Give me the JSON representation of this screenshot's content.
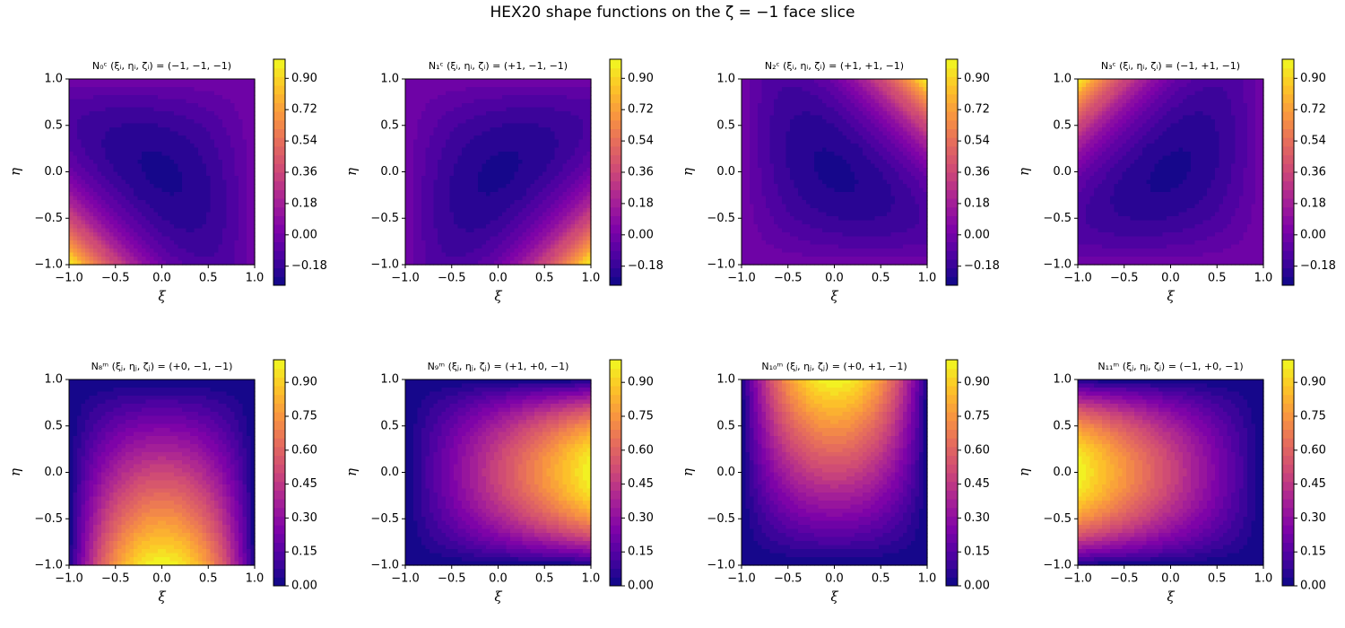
{
  "title": "HEX20 shape functions on the ζ = −1 face slice",
  "zeta": -1,
  "chart_data": [
    {
      "type": "contour",
      "title": "N₀ᶜ  (ξᵢ, ηᵢ, ζᵢ) = (−1, −1, −1)",
      "node": [
        -1,
        -1,
        -1
      ],
      "xlabel": "ξ",
      "ylabel": "η",
      "xlim": [
        -1,
        1
      ],
      "ylim": [
        -1,
        1
      ],
      "xticks": [
        {
          "value": -1,
          "label": "−1.0"
        },
        {
          "value": -0.5,
          "label": "−0.5"
        },
        {
          "value": 0,
          "label": "0.0"
        },
        {
          "value": 0.5,
          "label": "0.5"
        },
        {
          "value": 1,
          "label": "1.0"
        }
      ],
      "yticks": [
        {
          "value": -1,
          "label": "−1.0"
        },
        {
          "value": -0.5,
          "label": "−0.5"
        },
        {
          "value": 0,
          "label": "0.0"
        },
        {
          "value": 0.5,
          "label": "0.5"
        },
        {
          "value": 1,
          "label": "1.0"
        }
      ],
      "colormap": "plasma",
      "clim": [
        -0.29,
        1.01
      ],
      "cticks": [
        {
          "value": -0.18,
          "label": "−0.18"
        },
        {
          "value": 0,
          "label": "0.00"
        },
        {
          "value": 0.18,
          "label": "0.18"
        },
        {
          "value": 0.36,
          "label": "0.36"
        },
        {
          "value": 0.54,
          "label": "0.54"
        },
        {
          "value": 0.72,
          "label": "0.72"
        },
        {
          "value": 0.9,
          "label": "0.90"
        }
      ]
    },
    {
      "type": "contour",
      "title": "N₁ᶜ  (ξᵢ, ηᵢ, ζᵢ) = (+1, −1, −1)",
      "node": [
        1,
        -1,
        -1
      ],
      "xlabel": "ξ",
      "ylabel": "η",
      "xlim": [
        -1,
        1
      ],
      "ylim": [
        -1,
        1
      ],
      "xticks": [
        {
          "value": -1,
          "label": "−1.0"
        },
        {
          "value": -0.5,
          "label": "−0.5"
        },
        {
          "value": 0,
          "label": "0.0"
        },
        {
          "value": 0.5,
          "label": "0.5"
        },
        {
          "value": 1,
          "label": "1.0"
        }
      ],
      "yticks": [
        {
          "value": -1,
          "label": "−1.0"
        },
        {
          "value": -0.5,
          "label": "−0.5"
        },
        {
          "value": 0,
          "label": "0.0"
        },
        {
          "value": 0.5,
          "label": "0.5"
        },
        {
          "value": 1,
          "label": "1.0"
        }
      ],
      "colormap": "plasma",
      "clim": [
        -0.29,
        1.01
      ],
      "cticks": [
        {
          "value": -0.18,
          "label": "−0.18"
        },
        {
          "value": 0,
          "label": "0.00"
        },
        {
          "value": 0.18,
          "label": "0.18"
        },
        {
          "value": 0.36,
          "label": "0.36"
        },
        {
          "value": 0.54,
          "label": "0.54"
        },
        {
          "value": 0.72,
          "label": "0.72"
        },
        {
          "value": 0.9,
          "label": "0.90"
        }
      ]
    },
    {
      "type": "contour",
      "title": "N₂ᶜ  (ξᵢ, ηᵢ, ζᵢ) = (+1, +1, −1)",
      "node": [
        1,
        1,
        -1
      ],
      "xlabel": "ξ",
      "ylabel": "η",
      "xlim": [
        -1,
        1
      ],
      "ylim": [
        -1,
        1
      ],
      "xticks": [
        {
          "value": -1,
          "label": "−1.0"
        },
        {
          "value": -0.5,
          "label": "−0.5"
        },
        {
          "value": 0,
          "label": "0.0"
        },
        {
          "value": 0.5,
          "label": "0.5"
        },
        {
          "value": 1,
          "label": "1.0"
        }
      ],
      "yticks": [
        {
          "value": -1,
          "label": "−1.0"
        },
        {
          "value": -0.5,
          "label": "−0.5"
        },
        {
          "value": 0,
          "label": "0.0"
        },
        {
          "value": 0.5,
          "label": "0.5"
        },
        {
          "value": 1,
          "label": "1.0"
        }
      ],
      "colormap": "plasma",
      "clim": [
        -0.29,
        1.01
      ],
      "cticks": [
        {
          "value": -0.18,
          "label": "−0.18"
        },
        {
          "value": 0,
          "label": "0.00"
        },
        {
          "value": 0.18,
          "label": "0.18"
        },
        {
          "value": 0.36,
          "label": "0.36"
        },
        {
          "value": 0.54,
          "label": "0.54"
        },
        {
          "value": 0.72,
          "label": "0.72"
        },
        {
          "value": 0.9,
          "label": "0.90"
        }
      ]
    },
    {
      "type": "contour",
      "title": "N₃ᶜ  (ξᵢ, ηᵢ, ζᵢ) = (−1, +1, −1)",
      "node": [
        -1,
        1,
        -1
      ],
      "xlabel": "ξ",
      "ylabel": "η",
      "xlim": [
        -1,
        1
      ],
      "ylim": [
        -1,
        1
      ],
      "xticks": [
        {
          "value": -1,
          "label": "−1.0"
        },
        {
          "value": -0.5,
          "label": "−0.5"
        },
        {
          "value": 0,
          "label": "0.0"
        },
        {
          "value": 0.5,
          "label": "0.5"
        },
        {
          "value": 1,
          "label": "1.0"
        }
      ],
      "yticks": [
        {
          "value": -1,
          "label": "−1.0"
        },
        {
          "value": -0.5,
          "label": "−0.5"
        },
        {
          "value": 0,
          "label": "0.0"
        },
        {
          "value": 0.5,
          "label": "0.5"
        },
        {
          "value": 1,
          "label": "1.0"
        }
      ],
      "colormap": "plasma",
      "clim": [
        -0.29,
        1.01
      ],
      "cticks": [
        {
          "value": -0.18,
          "label": "−0.18"
        },
        {
          "value": 0,
          "label": "0.00"
        },
        {
          "value": 0.18,
          "label": "0.18"
        },
        {
          "value": 0.36,
          "label": "0.36"
        },
        {
          "value": 0.54,
          "label": "0.54"
        },
        {
          "value": 0.72,
          "label": "0.72"
        },
        {
          "value": 0.9,
          "label": "0.90"
        }
      ]
    },
    {
      "type": "contour",
      "title": "N₈ᵐ  (ξⱼ, ηⱼ, ζⱼ) = (+0, −1, −1)",
      "node": [
        0,
        -1,
        -1
      ],
      "xlabel": "ξ",
      "ylabel": "η",
      "xlim": [
        -1,
        1
      ],
      "ylim": [
        -1,
        1
      ],
      "xticks": [
        {
          "value": -1,
          "label": "−1.0"
        },
        {
          "value": -0.5,
          "label": "−0.5"
        },
        {
          "value": 0,
          "label": "0.0"
        },
        {
          "value": 0.5,
          "label": "0.5"
        },
        {
          "value": 1,
          "label": "1.0"
        }
      ],
      "yticks": [
        {
          "value": -1,
          "label": "−1.0"
        },
        {
          "value": -0.5,
          "label": "−0.5"
        },
        {
          "value": 0,
          "label": "0.0"
        },
        {
          "value": 0.5,
          "label": "0.5"
        },
        {
          "value": 1,
          "label": "1.0"
        }
      ],
      "colormap": "plasma",
      "clim": [
        0,
        1
      ],
      "cticks": [
        {
          "value": 0,
          "label": "0.00"
        },
        {
          "value": 0.15,
          "label": "0.15"
        },
        {
          "value": 0.3,
          "label": "0.30"
        },
        {
          "value": 0.45,
          "label": "0.45"
        },
        {
          "value": 0.6,
          "label": "0.60"
        },
        {
          "value": 0.75,
          "label": "0.75"
        },
        {
          "value": 0.9,
          "label": "0.90"
        }
      ]
    },
    {
      "type": "contour",
      "title": "N₉ᵐ  (ξⱼ, ηⱼ, ζⱼ) = (+1, +0, −1)",
      "node": [
        1,
        0,
        -1
      ],
      "xlabel": "ξ",
      "ylabel": "η",
      "xlim": [
        -1,
        1
      ],
      "ylim": [
        -1,
        1
      ],
      "xticks": [
        {
          "value": -1,
          "label": "−1.0"
        },
        {
          "value": -0.5,
          "label": "−0.5"
        },
        {
          "value": 0,
          "label": "0.0"
        },
        {
          "value": 0.5,
          "label": "0.5"
        },
        {
          "value": 1,
          "label": "1.0"
        }
      ],
      "yticks": [
        {
          "value": -1,
          "label": "−1.0"
        },
        {
          "value": -0.5,
          "label": "−0.5"
        },
        {
          "value": 0,
          "label": "0.0"
        },
        {
          "value": 0.5,
          "label": "0.5"
        },
        {
          "value": 1,
          "label": "1.0"
        }
      ],
      "colormap": "plasma",
      "clim": [
        0,
        1
      ],
      "cticks": [
        {
          "value": 0,
          "label": "0.00"
        },
        {
          "value": 0.15,
          "label": "0.15"
        },
        {
          "value": 0.3,
          "label": "0.30"
        },
        {
          "value": 0.45,
          "label": "0.45"
        },
        {
          "value": 0.6,
          "label": "0.60"
        },
        {
          "value": 0.75,
          "label": "0.75"
        },
        {
          "value": 0.9,
          "label": "0.90"
        }
      ]
    },
    {
      "type": "contour",
      "title": "N₁₀ᵐ  (ξⱼ, ηⱼ, ζⱼ) = (+0, +1, −1)",
      "node": [
        0,
        1,
        -1
      ],
      "xlabel": "ξ",
      "ylabel": "η",
      "xlim": [
        -1,
        1
      ],
      "ylim": [
        -1,
        1
      ],
      "xticks": [
        {
          "value": -1,
          "label": "−1.0"
        },
        {
          "value": -0.5,
          "label": "−0.5"
        },
        {
          "value": 0,
          "label": "0.0"
        },
        {
          "value": 0.5,
          "label": "0.5"
        },
        {
          "value": 1,
          "label": "1.0"
        }
      ],
      "yticks": [
        {
          "value": -1,
          "label": "−1.0"
        },
        {
          "value": -0.5,
          "label": "−0.5"
        },
        {
          "value": 0,
          "label": "0.0"
        },
        {
          "value": 0.5,
          "label": "0.5"
        },
        {
          "value": 1,
          "label": "1.0"
        }
      ],
      "colormap": "plasma",
      "clim": [
        0,
        1
      ],
      "cticks": [
        {
          "value": 0,
          "label": "0.00"
        },
        {
          "value": 0.15,
          "label": "0.15"
        },
        {
          "value": 0.3,
          "label": "0.30"
        },
        {
          "value": 0.45,
          "label": "0.45"
        },
        {
          "value": 0.6,
          "label": "0.60"
        },
        {
          "value": 0.75,
          "label": "0.75"
        },
        {
          "value": 0.9,
          "label": "0.90"
        }
      ]
    },
    {
      "type": "contour",
      "title": "N₁₁ᵐ  (ξⱼ, ηⱼ, ζⱼ) = (−1, +0, −1)",
      "node": [
        -1,
        0,
        -1
      ],
      "xlabel": "ξ",
      "ylabel": "η",
      "xlim": [
        -1,
        1
      ],
      "ylim": [
        -1,
        1
      ],
      "xticks": [
        {
          "value": -1,
          "label": "−1.0"
        },
        {
          "value": -0.5,
          "label": "−0.5"
        },
        {
          "value": 0,
          "label": "0.0"
        },
        {
          "value": 0.5,
          "label": "0.5"
        },
        {
          "value": 1,
          "label": "1.0"
        }
      ],
      "yticks": [
        {
          "value": -1,
          "label": "−1.0"
        },
        {
          "value": -0.5,
          "label": "−0.5"
        },
        {
          "value": 0,
          "label": "0.0"
        },
        {
          "value": 0.5,
          "label": "0.5"
        },
        {
          "value": 1,
          "label": "1.0"
        }
      ],
      "colormap": "plasma",
      "clim": [
        0,
        1
      ],
      "cticks": [
        {
          "value": 0,
          "label": "0.00"
        },
        {
          "value": 0.15,
          "label": "0.15"
        },
        {
          "value": 0.3,
          "label": "0.30"
        },
        {
          "value": 0.45,
          "label": "0.45"
        },
        {
          "value": 0.6,
          "label": "0.60"
        },
        {
          "value": 0.75,
          "label": "0.75"
        },
        {
          "value": 0.9,
          "label": "0.90"
        }
      ]
    }
  ]
}
